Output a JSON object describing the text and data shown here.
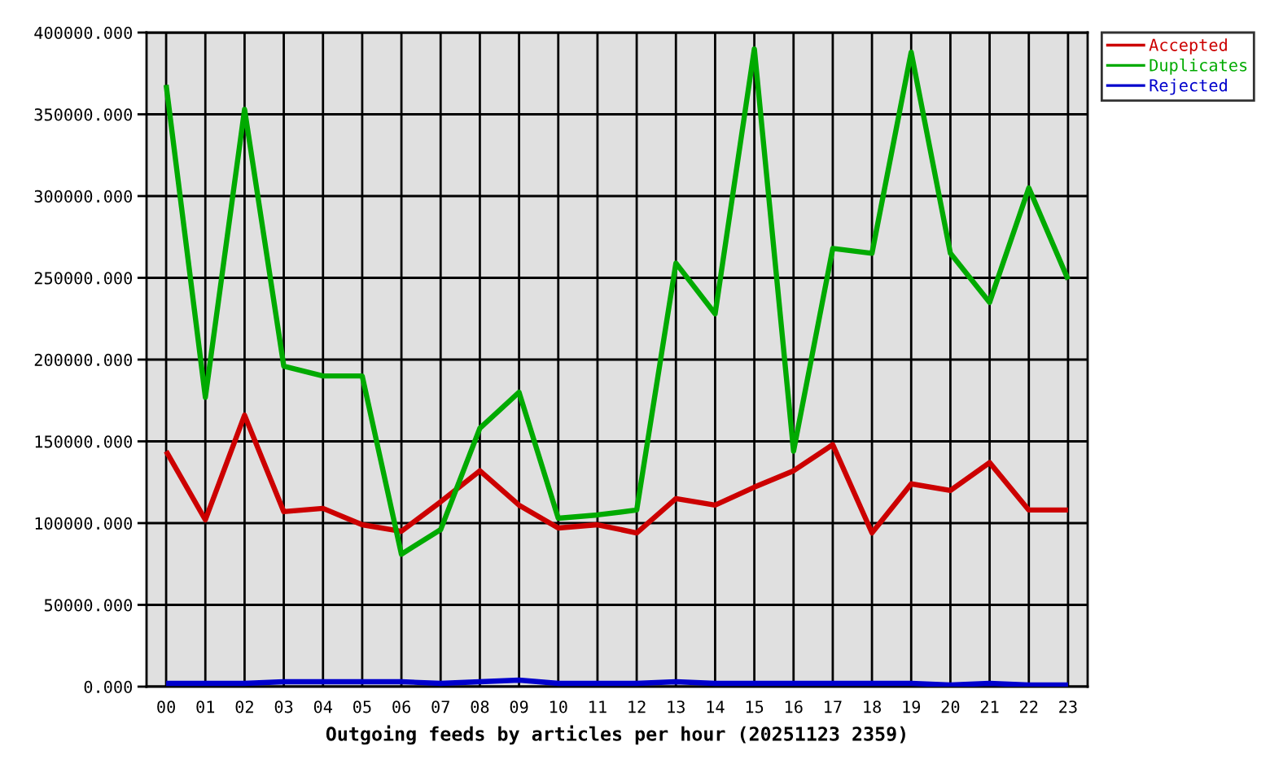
{
  "chart_data": {
    "type": "line",
    "xlabel": "Outgoing feeds by articles per hour (20251123 2359)",
    "categories": [
      "00",
      "01",
      "02",
      "03",
      "04",
      "05",
      "06",
      "07",
      "08",
      "09",
      "10",
      "11",
      "12",
      "13",
      "14",
      "15",
      "16",
      "17",
      "18",
      "19",
      "20",
      "21",
      "22",
      "23"
    ],
    "series": [
      {
        "name": "Accepted",
        "color": "#cc0000",
        "values": [
          144000,
          102000,
          166000,
          107000,
          109000,
          99000,
          95000,
          113000,
          132000,
          111000,
          97000,
          99000,
          94000,
          115000,
          111000,
          122000,
          132000,
          148000,
          94000,
          124000,
          120000,
          137000,
          108000,
          108000
        ]
      },
      {
        "name": "Duplicates",
        "color": "#00aa00",
        "values": [
          368000,
          177000,
          353000,
          196000,
          190000,
          190000,
          81000,
          96000,
          158000,
          180000,
          103000,
          105000,
          108000,
          259000,
          228000,
          390000,
          144000,
          268000,
          265000,
          388000,
          265000,
          235000,
          305000,
          249000
        ]
      },
      {
        "name": "Rejected",
        "color": "#0000cc",
        "values": [
          2000,
          2000,
          2000,
          3000,
          3000,
          3000,
          3000,
          2000,
          3000,
          4000,
          2000,
          2000,
          2000,
          3000,
          2000,
          2000,
          2000,
          2000,
          2000,
          2000,
          1000,
          2000,
          1000,
          1000
        ]
      }
    ],
    "ylim": [
      0,
      400000
    ],
    "yticks": [
      {
        "value": 0,
        "label": "0.000"
      },
      {
        "value": 50000,
        "label": "50000.000"
      },
      {
        "value": 100000,
        "label": "100000.000"
      },
      {
        "value": 150000,
        "label": "150000.000"
      },
      {
        "value": 200000,
        "label": "200000.000"
      },
      {
        "value": 250000,
        "label": "250000.000"
      },
      {
        "value": 300000,
        "label": "300000.000"
      },
      {
        "value": 350000,
        "label": "350000.000"
      },
      {
        "value": 400000,
        "label": "400000.000"
      }
    ],
    "grid": true,
    "legend": "top right",
    "line_style": "solid",
    "marker": "none"
  }
}
